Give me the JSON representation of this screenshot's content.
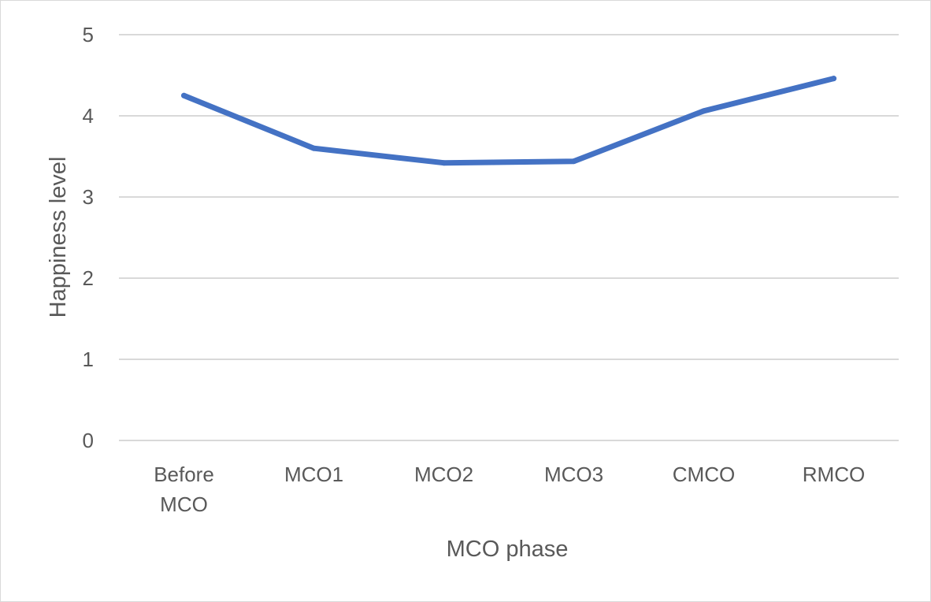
{
  "chart_data": {
    "type": "line",
    "categories": [
      [
        "Before",
        "MCO"
      ],
      [
        "MCO1"
      ],
      [
        "MCO2"
      ],
      [
        "MCO3"
      ],
      [
        "CMCO"
      ],
      [
        "RMCO"
      ]
    ],
    "series": [
      {
        "values": [
          4.25,
          3.6,
          3.42,
          3.44,
          4.06,
          4.46
        ]
      }
    ],
    "xlabel": "MCO phase",
    "ylabel": "Happiness level",
    "ylim": [
      0,
      5
    ],
    "yticks": [
      "0",
      "1",
      "2",
      "3",
      "4",
      "5"
    ],
    "grid": true,
    "legend": "none",
    "colors": {
      "line": "#4472c4",
      "grid": "#d9d9d9",
      "text": "#595959"
    }
  }
}
